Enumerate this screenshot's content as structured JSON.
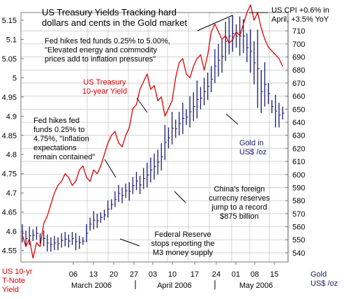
{
  "chart_data": {
    "type": "line",
    "title": "US Treasury Yields Tracking hard dollars and cents in the Gold market",
    "title_lines": [
      "US Treasury Yields Tracking hard",
      "dollars and cents in the Gold market"
    ],
    "grid": true,
    "x": {
      "tick_labels": [
        "06",
        "13",
        "20",
        "27",
        "03",
        "10",
        "17",
        "24",
        "01",
        "08",
        "15",
        "22"
      ],
      "month_labels": [
        "March 2006",
        "April 2006",
        "May 2006"
      ]
    },
    "y_left": {
      "label_lines": [
        "US 10-yr",
        "T-Note",
        "Yield"
      ],
      "ticks": [
        "4.55",
        "4.6",
        "4.65",
        "4.7",
        "4.75",
        "4.8",
        "4.85",
        "4.9",
        "4.95",
        "5",
        "5.05",
        "5.1",
        "5.15"
      ],
      "ylim": [
        4.52,
        5.17
      ]
    },
    "y_right": {
      "label_lines": [
        "Gold",
        "US$ /oz"
      ],
      "ticks": [
        "540",
        "550",
        "560",
        "570",
        "580",
        "590",
        "600",
        "610",
        "620",
        "630",
        "640",
        "650",
        "660",
        "670",
        "680",
        "690",
        "700",
        "710"
      ],
      "ylim": [
        533,
        724
      ]
    },
    "series": [
      {
        "name": "US Treasury 10-year Yield",
        "axis": "left",
        "color": "#e00000",
        "values": [
          4.59,
          4.56,
          4.58,
          4.53,
          4.57,
          4.56,
          4.62,
          4.64,
          4.67,
          4.7,
          4.72,
          4.73,
          4.75,
          4.74,
          4.72,
          4.73,
          4.76,
          4.77,
          4.74,
          4.73,
          4.76,
          4.75,
          4.77,
          4.8,
          4.83,
          4.85,
          4.86,
          4.83,
          4.82,
          4.85,
          4.87,
          4.92,
          4.93,
          4.97,
          4.99,
          5.01,
          4.97,
          4.98,
          4.94,
          4.95,
          4.9,
          4.92,
          4.94,
          5.0,
          5.04,
          5.05,
          5.01,
          5.0,
          5.03,
          5.05,
          5.06,
          5.02,
          5.06,
          5.12,
          5.14,
          5.12,
          5.1,
          5.11,
          5.09,
          5.1,
          5.12,
          5.11,
          5.14,
          5.17,
          5.19,
          5.15,
          5.17,
          5.13,
          5.1,
          5.08,
          5.07,
          5.06,
          5.05,
          5.03
        ]
      },
      {
        "name": "Gold in US$ /oz",
        "axis": "right",
        "type": "ohlc",
        "color": "#1a1a6e",
        "high": [
          562,
          557,
          560,
          558,
          560,
          555,
          557,
          554,
          552,
          553,
          552,
          555,
          556,
          554,
          556,
          555,
          553,
          552,
          562,
          567,
          572,
          570,
          571,
          573,
          580,
          581,
          587,
          592,
          590,
          593,
          594,
          598,
          602,
          599,
          605,
          609,
          613,
          616,
          619,
          624,
          638,
          636,
          648,
          642,
          648,
          655,
          650,
          660,
          663,
          672,
          667,
          674,
          678,
          683,
          696,
          700,
          703,
          717,
          720,
          722,
          715,
          721,
          719,
          708,
          711,
          702,
          711,
          680,
          686,
          670,
          657,
          661,
          655,
          652
        ],
        "low": [
          548,
          545,
          546,
          549,
          550,
          547,
          545,
          541,
          541,
          542,
          542,
          544,
          545,
          544,
          546,
          542,
          543,
          546,
          548,
          557,
          558,
          559,
          563,
          565,
          567,
          573,
          575,
          579,
          578,
          582,
          580,
          585,
          588,
          585,
          589,
          590,
          594,
          596,
          600,
          603,
          611,
          620,
          623,
          628,
          630,
          631,
          638,
          636,
          641,
          643,
          650,
          653,
          657,
          663,
          670,
          675,
          678,
          687,
          692,
          694,
          697,
          691,
          693,
          686,
          678,
          669,
          651,
          647,
          652,
          654,
          647,
          636,
          636,
          642
        ]
      }
    ],
    "annotations": [
      {
        "id": "fed-500",
        "lines": [
          "Fed hikes fed funds 0.25% to 5.00%,",
          "\"Elevated energy and commodity",
          "prices add to inflation pressures\""
        ]
      },
      {
        "id": "fed-475",
        "lines": [
          "Fed hikes fed",
          "funds 0.25% to",
          "4.75%, \"Inflation",
          "expectations",
          "remain contained\""
        ]
      },
      {
        "id": "cpi",
        "lines": [
          "US CPI +0.6% in",
          "April, +3.5% YoY"
        ]
      },
      {
        "id": "china",
        "lines": [
          "China's foreign",
          "currecny reserves",
          "jump to a record",
          "$875 billion"
        ]
      },
      {
        "id": "fed-m3",
        "lines": [
          "Federal Reserve",
          "stops reporting the",
          "M3 money supply"
        ]
      },
      {
        "id": "label-treasury",
        "lines": [
          "US Treasury",
          "10-year Yield"
        ]
      },
      {
        "id": "label-gold",
        "lines": [
          "Gold in",
          "US$ /oz"
        ]
      }
    ]
  }
}
